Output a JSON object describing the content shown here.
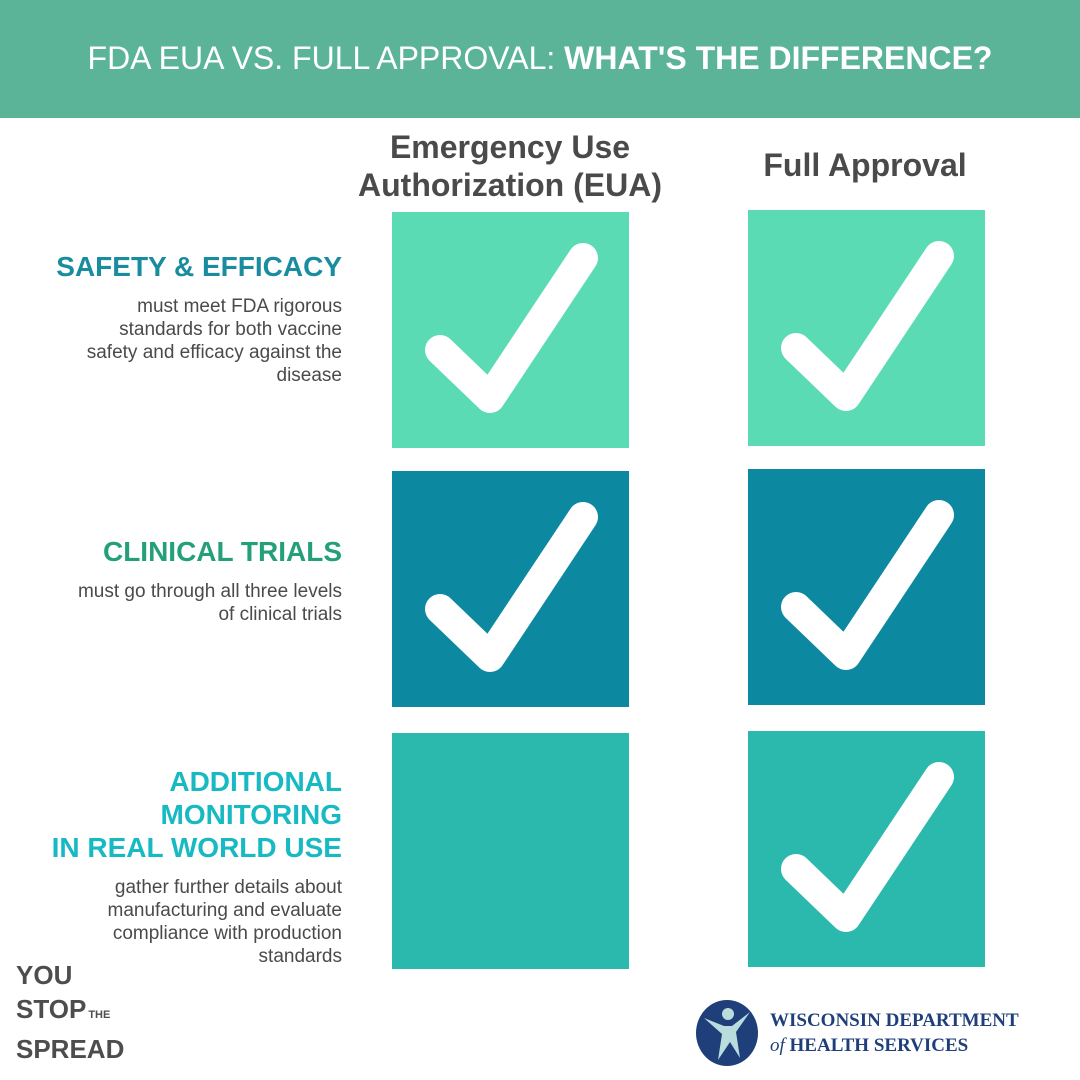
{
  "header": {
    "title_light": "FDA EUA VS. FULL APPROVAL:",
    "title_bold": "WHAT'S THE DIFFERENCE?",
    "color": "#5bb398"
  },
  "columns": [
    {
      "line1": "Emergency Use",
      "line2": "Authorization (EUA)"
    },
    {
      "line1": "Full Approval"
    }
  ],
  "rows": [
    {
      "heading": [
        "SAFETY & EFFICACY"
      ],
      "description": [
        "must meet FDA rigorous",
        "standards for both vaccine",
        "safety and efficacy against the",
        "disease"
      ],
      "heading_color": "#1a8ca0",
      "box_color": "#5adbb3",
      "eua": true,
      "full": true
    },
    {
      "heading": [
        "CLINICAL TRIALS"
      ],
      "description": [
        "must go through all three levels",
        "of clinical trials"
      ],
      "heading_color": "#23a07a",
      "box_color": "#0c89a0",
      "eua": true,
      "full": true
    },
    {
      "heading": [
        "ADDITIONAL MONITORING",
        "IN REAL WORLD USE"
      ],
      "description": [
        "gather further details about",
        "manufacturing and evaluate",
        "compliance with production",
        "standards"
      ],
      "heading_color": "#17b9c3",
      "box_color": "#2bb9ae",
      "eua": false,
      "full": true
    }
  ],
  "logos": {
    "campaign": {
      "line1": "YOU",
      "line2": "STOP",
      "the": "THE",
      "line3": "SPREAD"
    },
    "agency": {
      "line1": "WISCONSIN DEPARTMENT",
      "of": "of",
      "line2": "HEALTH SERVICES"
    }
  }
}
